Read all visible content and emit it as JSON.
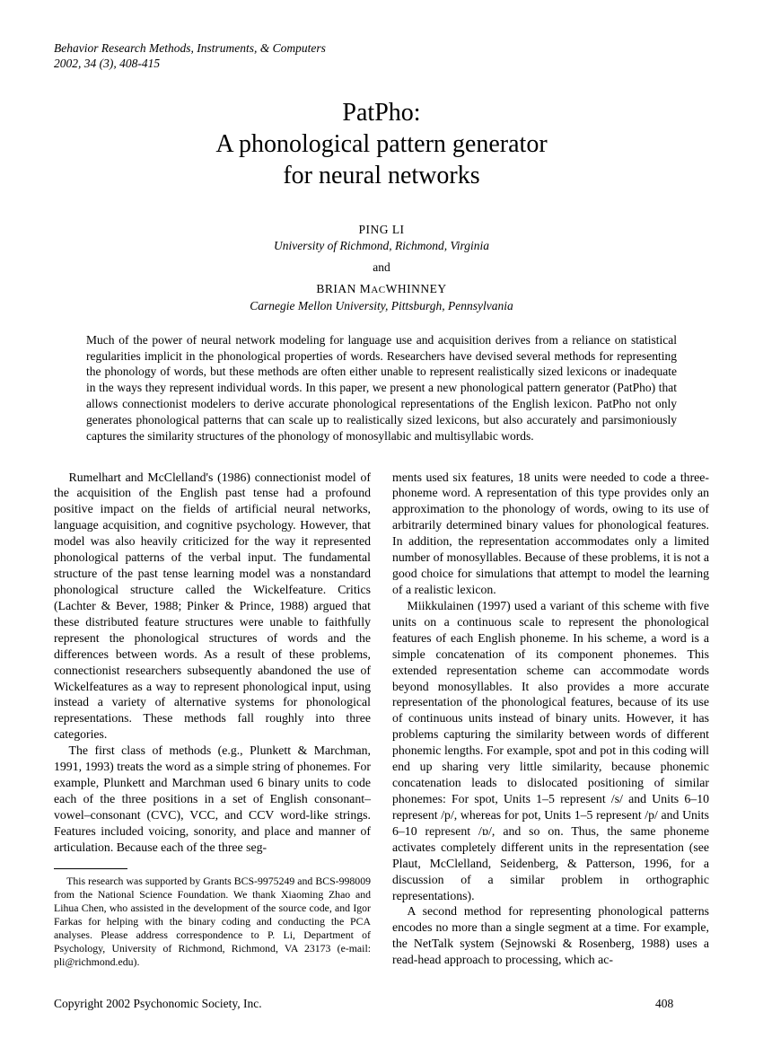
{
  "running_head": {
    "line1": "Behavior Research Methods, Instruments, & Computers",
    "line2": "2002, 34 (3), 408-415"
  },
  "title": {
    "line1": "PatPho:",
    "line2": "A phonological pattern generator",
    "line3": "for neural networks"
  },
  "authors": {
    "a1_name": "PING LI",
    "a1_aff": "University of Richmond, Richmond, Virginia",
    "and": "and",
    "a2_name_pre": "BRIAN M",
    "a2_name_sc": "AC",
    "a2_name_post": "WHINNEY",
    "a2_aff": "Carnegie Mellon University, Pittsburgh, Pennsylvania"
  },
  "abstract": "Much of the power of neural network modeling for language use and acquisition derives from a reliance on statistical regularities implicit in the phonological properties of words. Researchers have devised several methods for representing the phonology of words, but these methods are often either unable to represent realistically sized lexicons or inadequate in the ways they represent individual words. In this paper, we present a new phonological pattern generator (PatPho) that allows connectionist modelers to derive accurate phonological representations of the English lexicon. PatPho not only generates phonological patterns that can scale up to realistically sized lexicons, but also accurately and parsimoniously captures the similarity structures of the phonology of monosyllabic and multisyllabic words.",
  "left": {
    "p1": "Rumelhart and McClelland's (1986) connectionist model of the acquisition of the English past tense had a profound positive impact on the fields of artificial neural networks, language acquisition, and cognitive psychology. However, that model was also heavily criticized for the way it represented phonological patterns of the verbal input. The fundamental structure of the past tense learning model was a nonstandard phonological structure called the Wickelfeature. Critics (Lachter & Bever, 1988; Pinker & Prince, 1988) argued that these distributed feature structures were unable to faithfully represent the phonological structures of words and the differences between words. As a result of these problems, connectionist researchers subsequently abandoned the use of Wickelfeatures as a way to represent phonological input, using instead a variety of alternative systems for phonological representations. These methods fall roughly into three categories.",
    "p2": "The first class of methods (e.g., Plunkett & Marchman, 1991, 1993) treats the word as a simple string of phonemes. For example, Plunkett and Marchman used 6 binary units to code each of the three positions in a set of English consonant–vowel–consonant (CVC), VCC, and CCV word-like strings. Features included voicing, sonority, and place and manner of articulation. Because each of the three seg-"
  },
  "right": {
    "p1": "ments used six features, 18 units were needed to code a three-phoneme word. A representation of this type provides only an approximation to the phonology of words, owing to its use of arbitrarily determined binary values for phonological features. In addition, the representation accommodates only a limited number of monosyllables. Because of these problems, it is not a good choice for simulations that attempt to model the learning of a realistic lexicon.",
    "p2": "Miikkulainen (1997) used a variant of this scheme with five units on a continuous scale to represent the phonological features of each English phoneme. In his scheme, a word is a simple concatenation of its component phonemes. This extended representation scheme can accommodate words beyond monosyllables. It also provides a more accurate representation of the phonological features, because of its use of continuous units instead of binary units. However, it has problems capturing the similarity between words of different phonemic lengths. For example, spot and pot in this coding will end up sharing very little similarity, because phonemic concatenation leads to dislocated positioning of similar phonemes: For spot, Units 1–5 represent /s/ and Units 6–10 represent /p/, whereas for pot, Units 1–5 represent /p/ and Units 6–10 represent /ɒ/, and so on. Thus, the same phoneme activates completely different units in the representation (see Plaut, McClelland, Seidenberg, & Patterson, 1996, for a discussion of a similar problem in orthographic representations).",
    "p3": "A second method for representing phonological patterns encodes no more than a single segment at a time. For example, the NetTalk system (Sejnowski & Rosenberg, 1988) uses a read-head approach to processing, which ac-"
  },
  "footnote": "This research was supported by Grants BCS-9975249 and BCS-998009 from the National Science Foundation. We thank Xiaoming Zhao and Lihua Chen, who assisted in the development of the source code, and Igor Farkas for helping with the binary coding and conducting the PCA analyses. Please address correspondence to P. Li, Department of Psychology, University of Richmond, Richmond, VA 23173 (e-mail: pli@richmond.edu).",
  "footer": {
    "copyright": "Copyright 2002 Psychonomic Society, Inc.",
    "page": "408"
  }
}
